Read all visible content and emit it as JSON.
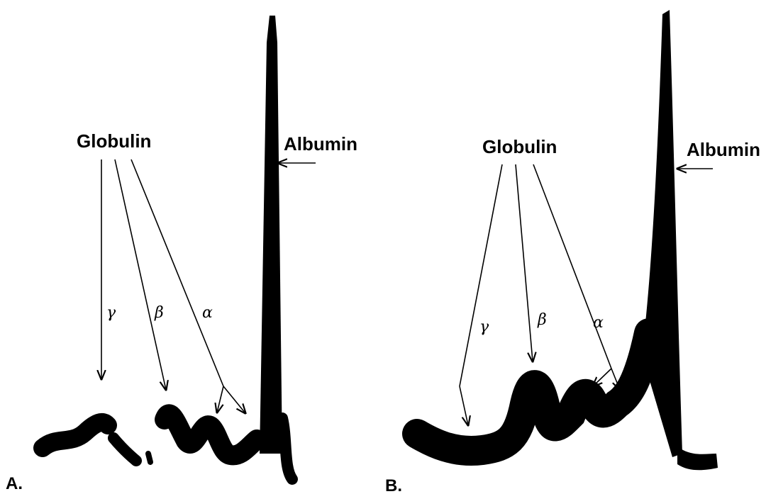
{
  "panels": [
    {
      "label": "A.",
      "globulin": "Globulin",
      "albumin": "Albumin",
      "fractions": [
        "γ",
        "β",
        "α"
      ]
    },
    {
      "label": "B.",
      "globulin": "Globulin",
      "albumin": "Albumin",
      "fractions": [
        "γ",
        "β",
        "α"
      ]
    }
  ]
}
